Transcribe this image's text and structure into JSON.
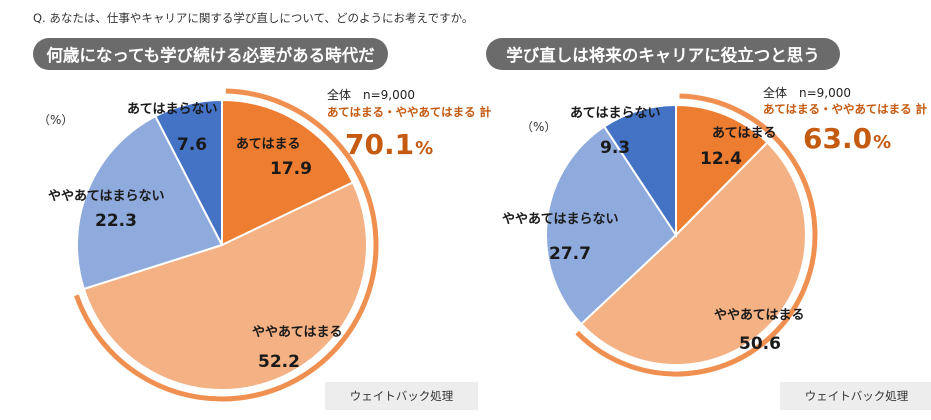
{
  "question": "Q.  あなたは、仕事やキャリアに関する学び直しについて、どのようにお考えですか。",
  "colors": {
    "agree": "#ed7d31",
    "somewhat_agree": "#f4b183",
    "somewhat_disagree": "#8faadc",
    "disagree": "#4472c4",
    "accent": "#c55a11",
    "title_bg": "#6b6b6b"
  },
  "chart_data": [
    {
      "type": "pie",
      "title": "何歳になっても学び続ける必要がある時代だ",
      "unit": "（%）",
      "total_label": "全体　n=9,000",
      "top2_label": "あてはまる・ややあてはまる 計",
      "top2_value": "70.1",
      "top2_unit": "%",
      "weight_note": "ウェイトバック処理",
      "slices": [
        {
          "label": "あてはまる",
          "value": 17.9,
          "display": "17.9",
          "color": "#ed7d31"
        },
        {
          "label": "ややあてはまる",
          "value": 52.2,
          "display": "52.2",
          "color": "#f4b183"
        },
        {
          "label": "ややあてはまらない",
          "value": 22.3,
          "display": "22.3",
          "color": "#8faadc"
        },
        {
          "label": "あてはまらない",
          "value": 7.6,
          "display": "7.6",
          "color": "#4472c4"
        }
      ]
    },
    {
      "type": "pie",
      "title": "学び直しは将来のキャリアに役立つと思う",
      "unit": "（%）",
      "total_label": "全体　n=9,000",
      "top2_label": "あてはまる・ややあてはまる 計",
      "top2_value": "63.0",
      "top2_unit": "%",
      "weight_note": "ウェイトバック処理",
      "slices": [
        {
          "label": "あてはまる",
          "value": 12.4,
          "display": "12.4",
          "color": "#ed7d31"
        },
        {
          "label": "ややあてはまる",
          "value": 50.6,
          "display": "50.6",
          "color": "#f4b183"
        },
        {
          "label": "ややあてはまらない",
          "value": 27.7,
          "display": "27.7",
          "color": "#8faadc"
        },
        {
          "label": "あてはまらない",
          "value": 9.3,
          "display": "9.3",
          "color": "#4472c4"
        }
      ]
    }
  ]
}
